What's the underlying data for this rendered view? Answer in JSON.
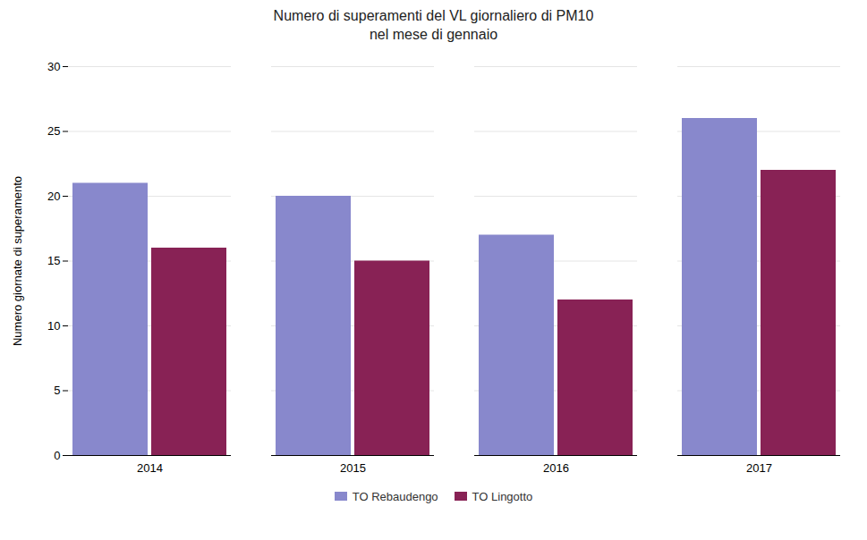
{
  "chart_data": {
    "type": "bar",
    "title": "Numero di superamenti del VL giornaliero di PM10",
    "subtitle": "nel mese di gennaio",
    "categories": [
      "2014",
      "2015",
      "2016",
      "2017"
    ],
    "series": [
      {
        "name": "TO Rebaudengo",
        "color": "#8888CC",
        "values": [
          21,
          20,
          17,
          26
        ]
      },
      {
        "name": "TO Lingotto",
        "color": "#882255",
        "values": [
          16,
          15,
          12,
          22
        ]
      }
    ],
    "ylabel": "Numero giornate di superamento",
    "ylim": [
      0,
      30
    ],
    "yticks": [
      0,
      5,
      10,
      15,
      20,
      25,
      30
    ],
    "grid": true,
    "legend": "bottom"
  }
}
